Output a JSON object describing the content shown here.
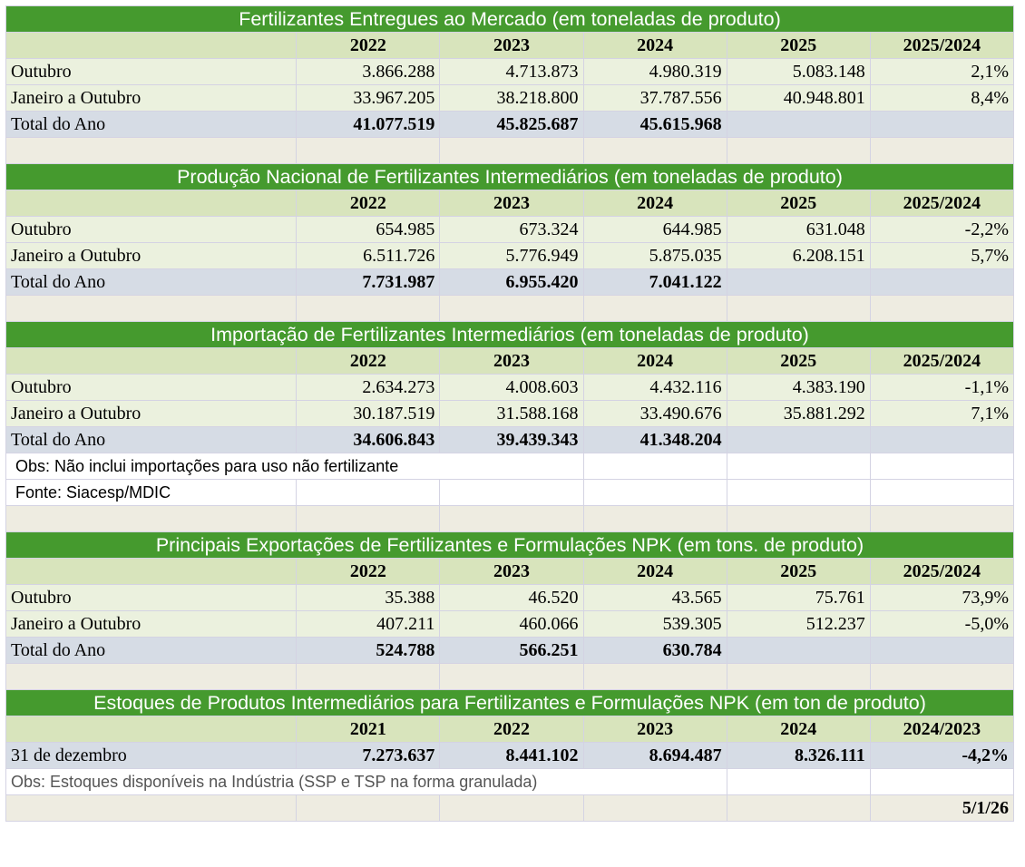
{
  "sections": [
    {
      "title": "Fertilizantes Entregues ao Mercado (em toneladas de produto)",
      "headers": [
        "2022",
        "2023",
        "2024",
        "2025",
        "2025/2024"
      ],
      "rows": [
        {
          "label": "Outubro",
          "values": [
            "3.866.288",
            "4.713.873",
            "4.980.319",
            "5.083.148",
            "2,1%"
          ]
        },
        {
          "label": "Janeiro a Outubro",
          "values": [
            "33.967.205",
            "38.218.800",
            "37.787.556",
            "40.948.801",
            "8,4%"
          ]
        }
      ],
      "total": {
        "label": "Total do Ano",
        "values": [
          "41.077.519",
          "45.825.687",
          "45.615.968",
          "",
          ""
        ]
      }
    },
    {
      "title": "Produção Nacional de Fertilizantes Intermediários (em toneladas de produto)",
      "headers": [
        "2022",
        "2023",
        "2024",
        "2025",
        "2025/2024"
      ],
      "rows": [
        {
          "label": "Outubro",
          "values": [
            "654.985",
            "673.324",
            "644.985",
            "631.048",
            "-2,2%"
          ]
        },
        {
          "label": "Janeiro a Outubro",
          "values": [
            "6.511.726",
            "5.776.949",
            "5.875.035",
            "6.208.151",
            "5,7%"
          ]
        }
      ],
      "total": {
        "label": "Total do Ano",
        "values": [
          "7.731.987",
          "6.955.420",
          "7.041.122",
          "",
          ""
        ]
      }
    },
    {
      "title": "Importação de Fertilizantes Intermediários (em toneladas de produto)",
      "headers": [
        "2022",
        "2023",
        "2024",
        "2025",
        "2025/2024"
      ],
      "rows": [
        {
          "label": "Outubro",
          "values": [
            "2.634.273",
            "4.008.603",
            "4.432.116",
            "4.383.190",
            "-1,1%"
          ]
        },
        {
          "label": "Janeiro a Outubro",
          "values": [
            "30.187.519",
            "31.588.168",
            "33.490.676",
            "35.881.292",
            "7,1%"
          ]
        }
      ],
      "total": {
        "label": "Total do Ano",
        "values": [
          "34.606.843",
          "39.439.343",
          "41.348.204",
          "",
          ""
        ]
      },
      "notes": [
        "Obs: Não inclui importações para uso não fertilizante",
        "Fonte: Siacesp/MDIC"
      ]
    },
    {
      "title": "Principais Exportações de Fertilizantes e Formulações NPK (em tons. de produto)",
      "headers": [
        "2022",
        "2023",
        "2024",
        "2025",
        "2025/2024"
      ],
      "rows": [
        {
          "label": "Outubro",
          "values": [
            "35.388",
            "46.520",
            "43.565",
            "75.761",
            "73,9%"
          ]
        },
        {
          "label": "Janeiro a Outubro",
          "values": [
            "407.211",
            "460.066",
            "539.305",
            "512.237",
            "-5,0%"
          ]
        }
      ],
      "total": {
        "label": "Total do Ano",
        "values": [
          "524.788",
          "566.251",
          "630.784",
          "",
          ""
        ]
      }
    }
  ],
  "stocks": {
    "title": "Estoques de Produtos Intermediários para Fertilizantes e Formulações NPK (em ton de produto)",
    "headers": [
      "2021",
      "2022",
      "2023",
      "2024",
      "2024/2023"
    ],
    "row": {
      "label": "31 de dezembro",
      "values": [
        "7.273.637",
        "8.441.102",
        "8.694.487",
        "8.326.111",
        "-4,2%"
      ]
    },
    "note": "Obs: Estoques disponíveis na Indústria (SSP e TSP na forma granulada)",
    "date": "5/1/26"
  },
  "colors": {
    "title_bg": "#459a2e",
    "header_bg": "#d8e4bc",
    "row_bg": "#ebf1de",
    "total_bg": "#d6dce5",
    "blank_bg": "#eeece1"
  }
}
